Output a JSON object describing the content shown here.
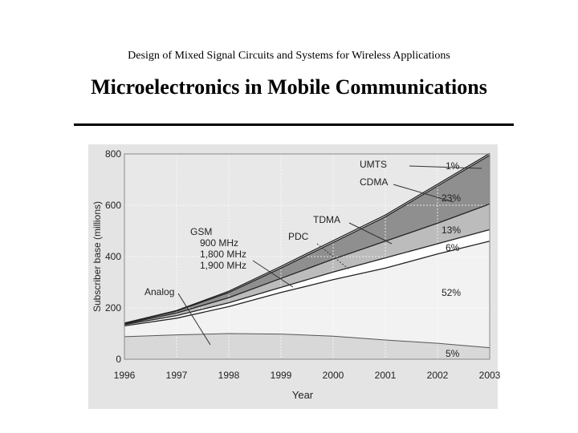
{
  "header": {
    "subtitle": "Design of Mixed Signal Circuits and Systems for Wireless Applications",
    "title": "Microelectronics in Mobile Communications"
  },
  "chart_data": {
    "type": "area",
    "x": [
      "1996",
      "1997",
      "1998",
      "1999",
      "2000",
      "2001",
      "2002",
      "2003"
    ],
    "xlabel": "Year",
    "ylabel": "Subscriber base (millions)",
    "ylim": [
      0,
      800
    ],
    "yticks": [
      "0",
      "200",
      "400",
      "600",
      "800"
    ],
    "grid": true,
    "boundaries": [
      {
        "name": "Analog",
        "values": [
          88,
          95,
          100,
          98,
          90,
          75,
          62,
          45
        ]
      },
      {
        "name": "GSM",
        "values": [
          130,
          160,
          205,
          260,
          310,
          355,
          410,
          460
        ]
      },
      {
        "name": "PDC",
        "values": [
          135,
          170,
          220,
          280,
          340,
          395,
          450,
          505
        ]
      },
      {
        "name": "TDMA",
        "values": [
          138,
          180,
          240,
          315,
          390,
          460,
          530,
          605
        ]
      },
      {
        "name": "CDMA",
        "values": [
          140,
          188,
          260,
          355,
          455,
          555,
          675,
          795
        ]
      },
      {
        "name": "UMTS",
        "values": [
          141,
          190,
          265,
          362,
          462,
          562,
          682,
          802
        ]
      }
    ],
    "labels": {
      "umts": "UMTS",
      "cdma": "CDMA",
      "tdma": "TDMA",
      "pdc": "PDC",
      "gsm": "GSM",
      "gsm_band1": "900 MHz",
      "gsm_band2": "1,800 MHz",
      "gsm_band3": "1,900 MHz",
      "analog": "Analog"
    },
    "shares": {
      "umts": "1%",
      "cdma": "23%",
      "tdma": "13%",
      "pdc": "6%",
      "gsm": "52%",
      "analog": "5%"
    },
    "colors": {
      "analog": "#d8d8d8",
      "gsm": "#f2f2f2",
      "pdc": "#ffffff",
      "tdma": "#bcbcbc",
      "cdma": "#8f8f8f",
      "umts": "#ffffff",
      "figure_bg": "#e4e4e4",
      "grid": "#ffffff"
    }
  }
}
